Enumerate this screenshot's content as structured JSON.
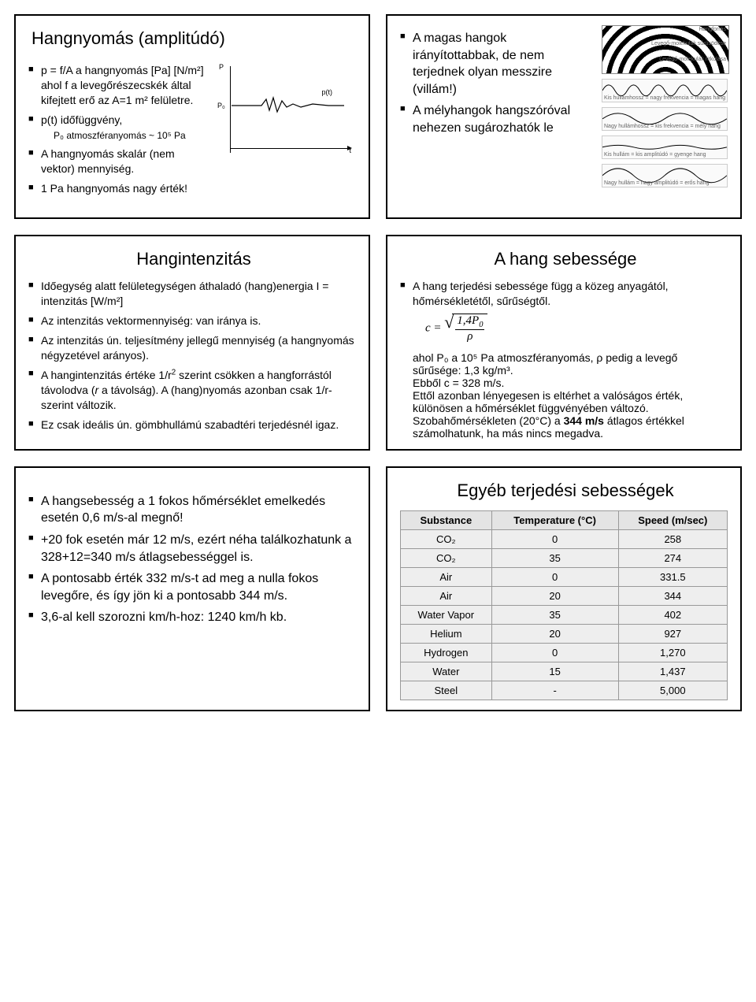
{
  "slides": {
    "s1": {
      "title": "Hangnyomás (amplitúdó)",
      "b1": "p = f/A a hangnyomás [Pa] [N/m²] ahol f a levegőrészecskék által kifejtett erő az A=1 m² felületre.",
      "b2": "p(t) időfüggvény,",
      "b2sub": "P₀ atmoszféranyomás ~ 10⁵ Pa",
      "b3": "A hangnyomás skalár (nem vektor) mennyiség.",
      "b4": "1 Pa hangnyomás nagy érték!",
      "fig": {
        "yLabel": "P",
        "p0": "P₀",
        "pt": "p(t)",
        "xLabel": "t"
      }
    },
    "s2": {
      "b1": "A magas hangok irányítottabbak, de nem terjednek olyan messzire (villám!)",
      "b2": "A mélyhangok hangszóróval nehezen sugározhatók le",
      "labels": {
        "src": "Hangforrás",
        "comp": "Levegő-molekulák sűrűsödése",
        "rare": "Levegő-molekulák ritkulása",
        "w1": "Kis hullámhossz = nagy frekvencia = magas hang",
        "w2": "Nagy hullámhossz = kis frekvencia = mély hang",
        "w3": "Kis hullám = kis amplitúdó = gyenge hang",
        "w4": "Nagy hullám = nagy amplitúdó = erős hang"
      }
    },
    "s3": {
      "title": "Hangintenzitás",
      "b1": "Időegység alatt felületegységen áthaladó (hang)energia I = intenzitás [W/m²]",
      "b2": "Az intenzitás vektormennyiség: van iránya is.",
      "b3": "Az intenzitás ún. teljesítmény jellegű mennyiség (a hangnyomás négyzetével arányos).",
      "b4": "A hangintenzitás értéke 1/r² szerint csökken a hangforrástól távolodva (r a távolság). A (hang)nyomás azonban csak 1/r-szerint változik.",
      "b5": "Ez csak ideális ún. gömbhullámú szabadtéri terjedésnél igaz."
    },
    "s4": {
      "title": "A hang sebessége",
      "b1": "A hang terjedési sebessége függ a közeg anyagától, hőmérsékletétől, sűrűségtől.",
      "formula": "c = √(1,4P₀ / ρ)",
      "t1": "ahol P₀ a 10⁵ Pa atmoszféranyomás, ρ pedig a levegő sűrűsége: 1,3 kg/m³.",
      "t2": "Ebből c = 328 m/s.",
      "t3": "Ettől azonban lényegesen is eltérhet a valóságos érték, különösen a hőmérséklet függvényében változó.",
      "t4": "Szobahőmérsékleten (20°C) a 344 m/s átlagos értékkel számolhatunk, ha más nincs megadva.",
      "bold": "344 m/s"
    },
    "s5": {
      "b1": "A hangsebesség a 1 fokos hőmérséklet emelkedés esetén 0,6 m/s-al megnő!",
      "b2": "+20 fok esetén már 12 m/s, ezért néha találkozhatunk a 328+12=340 m/s átlagsebességgel is.",
      "b3": "A pontosabb érték 332 m/s-t ad meg a nulla fokos levegőre, és így jön ki a pontosabb 344 m/s.",
      "b4": "3,6-al kell szorozni km/h-hoz: 1240 km/h kb."
    },
    "s6": {
      "title": "Egyéb terjedési sebességek",
      "table": {
        "columns": [
          "Substance",
          "Temperature (°C)",
          "Speed (m/sec)"
        ],
        "rows": [
          [
            "CO₂",
            "0",
            "258"
          ],
          [
            "CO₂",
            "35",
            "274"
          ],
          [
            "Air",
            "0",
            "331.5"
          ],
          [
            "Air",
            "20",
            "344"
          ],
          [
            "Water Vapor",
            "35",
            "402"
          ],
          [
            "Helium",
            "20",
            "927"
          ],
          [
            "Hydrogen",
            "0",
            "1,270"
          ],
          [
            "Water",
            "15",
            "1,437"
          ],
          [
            "Steel",
            "-",
            "5,000"
          ]
        ]
      }
    }
  },
  "style": {
    "border_color": "#000000",
    "bg": "#ffffff",
    "title_fontsize": 22,
    "body_fontsize": 14,
    "table_header_bg": "#e4e4e4",
    "table_cell_bg": "#eeeeee"
  }
}
